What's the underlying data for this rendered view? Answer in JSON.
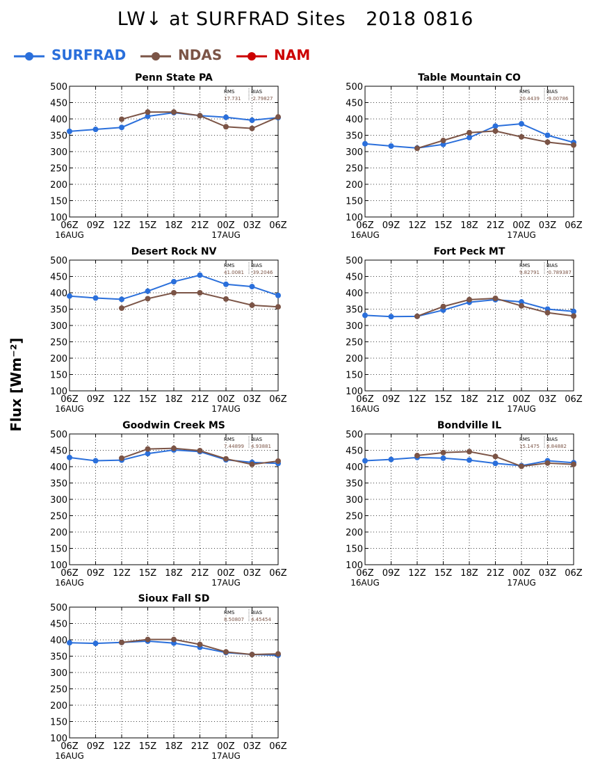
{
  "title": "LW↓ at SURFRAD Sites   2018 0816",
  "ylabel": "Flux [Wm⁻²]",
  "legend": [
    {
      "label": "SURFRAD",
      "color": "#2a6fdb"
    },
    {
      "label": "NDAS",
      "color": "#7b5446"
    },
    {
      "label": "NAM",
      "color": "#cc0000"
    }
  ],
  "chart_data": [
    {
      "type": "line",
      "title": "Penn State PA",
      "categories": [
        "06Z",
        "09Z",
        "12Z",
        "15Z",
        "18Z",
        "21Z",
        "00Z",
        "03Z",
        "06Z"
      ],
      "date_labels": [
        "16AUG",
        "",
        "",
        "",
        "",
        "",
        "17AUG",
        "",
        ""
      ],
      "ylim": [
        100,
        500
      ],
      "yticks": [
        100,
        150,
        200,
        250,
        300,
        350,
        400,
        450,
        500
      ],
      "grid": true,
      "stats": {
        "rms_label": "RMS",
        "bias_label": "BIAS",
        "rms": "17.731",
        "bias": "-2.79827"
      },
      "series": [
        {
          "name": "SURFRAD",
          "color": "#2a6fdb",
          "values": [
            362,
            368,
            374,
            408,
            419,
            410,
            405,
            396,
            404
          ]
        },
        {
          "name": "NDAS",
          "color": "#7b5446",
          "values": [
            null,
            null,
            399,
            421,
            421,
            410,
            376,
            371,
            406
          ]
        }
      ]
    },
    {
      "type": "line",
      "title": "Table Mountain CO",
      "categories": [
        "06Z",
        "09Z",
        "12Z",
        "15Z",
        "18Z",
        "21Z",
        "00Z",
        "03Z",
        "06Z"
      ],
      "date_labels": [
        "16AUG",
        "",
        "",
        "",
        "",
        "",
        "17AUG",
        "",
        ""
      ],
      "ylim": [
        100,
        500
      ],
      "yticks": [
        100,
        150,
        200,
        250,
        300,
        350,
        400,
        450,
        500
      ],
      "grid": true,
      "stats": {
        "rms_label": "RMS",
        "bias_label": "BIAS",
        "rms": "20.4439",
        "bias": "-9.00786"
      },
      "series": [
        {
          "name": "SURFRAD",
          "color": "#2a6fdb",
          "values": [
            324,
            317,
            311,
            322,
            343,
            378,
            385,
            350,
            328
          ]
        },
        {
          "name": "NDAS",
          "color": "#7b5446",
          "values": [
            null,
            null,
            310,
            334,
            358,
            363,
            345,
            329,
            320
          ]
        }
      ]
    },
    {
      "type": "line",
      "title": "Desert Rock NV",
      "categories": [
        "06Z",
        "09Z",
        "12Z",
        "15Z",
        "18Z",
        "21Z",
        "00Z",
        "03Z",
        "06Z"
      ],
      "date_labels": [
        "16AUG",
        "",
        "",
        "",
        "",
        "",
        "17AUG",
        "",
        ""
      ],
      "ylim": [
        100,
        500
      ],
      "yticks": [
        100,
        150,
        200,
        250,
        300,
        350,
        400,
        450,
        500
      ],
      "grid": true,
      "stats": {
        "rms_label": "RMS",
        "bias_label": "BIAS",
        "rms": "41.0081",
        "bias": "-39.2046"
      },
      "series": [
        {
          "name": "SURFRAD",
          "color": "#2a6fdb",
          "values": [
            390,
            384,
            380,
            405,
            434,
            454,
            426,
            419,
            392
          ]
        },
        {
          "name": "NDAS",
          "color": "#7b5446",
          "values": [
            null,
            null,
            353,
            382,
            400,
            400,
            381,
            362,
            357
          ]
        }
      ]
    },
    {
      "type": "line",
      "title": "Fort Peck MT",
      "categories": [
        "06Z",
        "09Z",
        "12Z",
        "15Z",
        "18Z",
        "21Z",
        "00Z",
        "03Z",
        "06Z"
      ],
      "date_labels": [
        "16AUG",
        "",
        "",
        "",
        "",
        "",
        "17AUG",
        "",
        ""
      ],
      "ylim": [
        100,
        500
      ],
      "yticks": [
        100,
        150,
        200,
        250,
        300,
        350,
        400,
        450,
        500
      ],
      "grid": true,
      "stats": {
        "rms_label": "RMS",
        "bias_label": "BIAS",
        "rms": "9.82791",
        "bias": "-0.789387"
      },
      "series": [
        {
          "name": "SURFRAD",
          "color": "#2a6fdb",
          "values": [
            331,
            327,
            328,
            347,
            371,
            379,
            372,
            350,
            343
          ]
        },
        {
          "name": "NDAS",
          "color": "#7b5446",
          "values": [
            null,
            null,
            328,
            358,
            379,
            383,
            360,
            339,
            329
          ]
        }
      ]
    },
    {
      "type": "line",
      "title": "Goodwin Creek MS",
      "categories": [
        "06Z",
        "09Z",
        "12Z",
        "15Z",
        "18Z",
        "21Z",
        "00Z",
        "03Z",
        "06Z"
      ],
      "date_labels": [
        "16AUG",
        "",
        "",
        "",
        "",
        "",
        "17AUG",
        "",
        ""
      ],
      "ylim": [
        100,
        500
      ],
      "yticks": [
        100,
        150,
        200,
        250,
        300,
        350,
        400,
        450,
        500
      ],
      "grid": true,
      "stats": {
        "rms_label": "RMS",
        "bias_label": "BIAS",
        "rms": "7.44899",
        "bias": "4.93881"
      },
      "series": [
        {
          "name": "SURFRAD",
          "color": "#2a6fdb",
          "values": [
            428,
            418,
            420,
            440,
            451,
            446,
            421,
            413,
            410
          ]
        },
        {
          "name": "NDAS",
          "color": "#7b5446",
          "values": [
            null,
            null,
            426,
            454,
            456,
            449,
            424,
            407,
            417
          ]
        }
      ]
    },
    {
      "type": "line",
      "title": "Bondville IL",
      "categories": [
        "06Z",
        "09Z",
        "12Z",
        "15Z",
        "18Z",
        "21Z",
        "00Z",
        "03Z",
        "06Z"
      ],
      "date_labels": [
        "16AUG",
        "",
        "",
        "",
        "",
        "",
        "17AUG",
        "",
        ""
      ],
      "ylim": [
        100,
        500
      ],
      "yticks": [
        100,
        150,
        200,
        250,
        300,
        350,
        400,
        450,
        500
      ],
      "grid": true,
      "stats": {
        "rms_label": "RMS",
        "bias_label": "BIAS",
        "rms": "15.1475",
        "bias": "8.84882"
      },
      "series": [
        {
          "name": "SURFRAD",
          "color": "#2a6fdb",
          "values": [
            418,
            422,
            428,
            426,
            420,
            410,
            403,
            418,
            412
          ]
        },
        {
          "name": "NDAS",
          "color": "#7b5446",
          "values": [
            null,
            null,
            434,
            443,
            446,
            431,
            401,
            411,
            407
          ]
        }
      ]
    },
    {
      "type": "line",
      "title": "Sioux Fall SD",
      "categories": [
        "06Z",
        "09Z",
        "12Z",
        "15Z",
        "18Z",
        "21Z",
        "00Z",
        "03Z",
        "06Z"
      ],
      "date_labels": [
        "16AUG",
        "",
        "",
        "",
        "",
        "",
        "17AUG",
        "",
        ""
      ],
      "ylim": [
        100,
        500
      ],
      "yticks": [
        100,
        150,
        200,
        250,
        300,
        350,
        400,
        450,
        500
      ],
      "grid": true,
      "stats": {
        "rms_label": "RMS",
        "bias_label": "BIAS",
        "rms": "8.50807",
        "bias": "4.45454"
      },
      "series": [
        {
          "name": "SURFRAD",
          "color": "#2a6fdb",
          "values": [
            391,
            389,
            392,
            396,
            390,
            377,
            361,
            355,
            353
          ]
        },
        {
          "name": "NDAS",
          "color": "#7b5446",
          "values": [
            null,
            null,
            392,
            401,
            401,
            386,
            363,
            355,
            357
          ]
        }
      ]
    }
  ]
}
